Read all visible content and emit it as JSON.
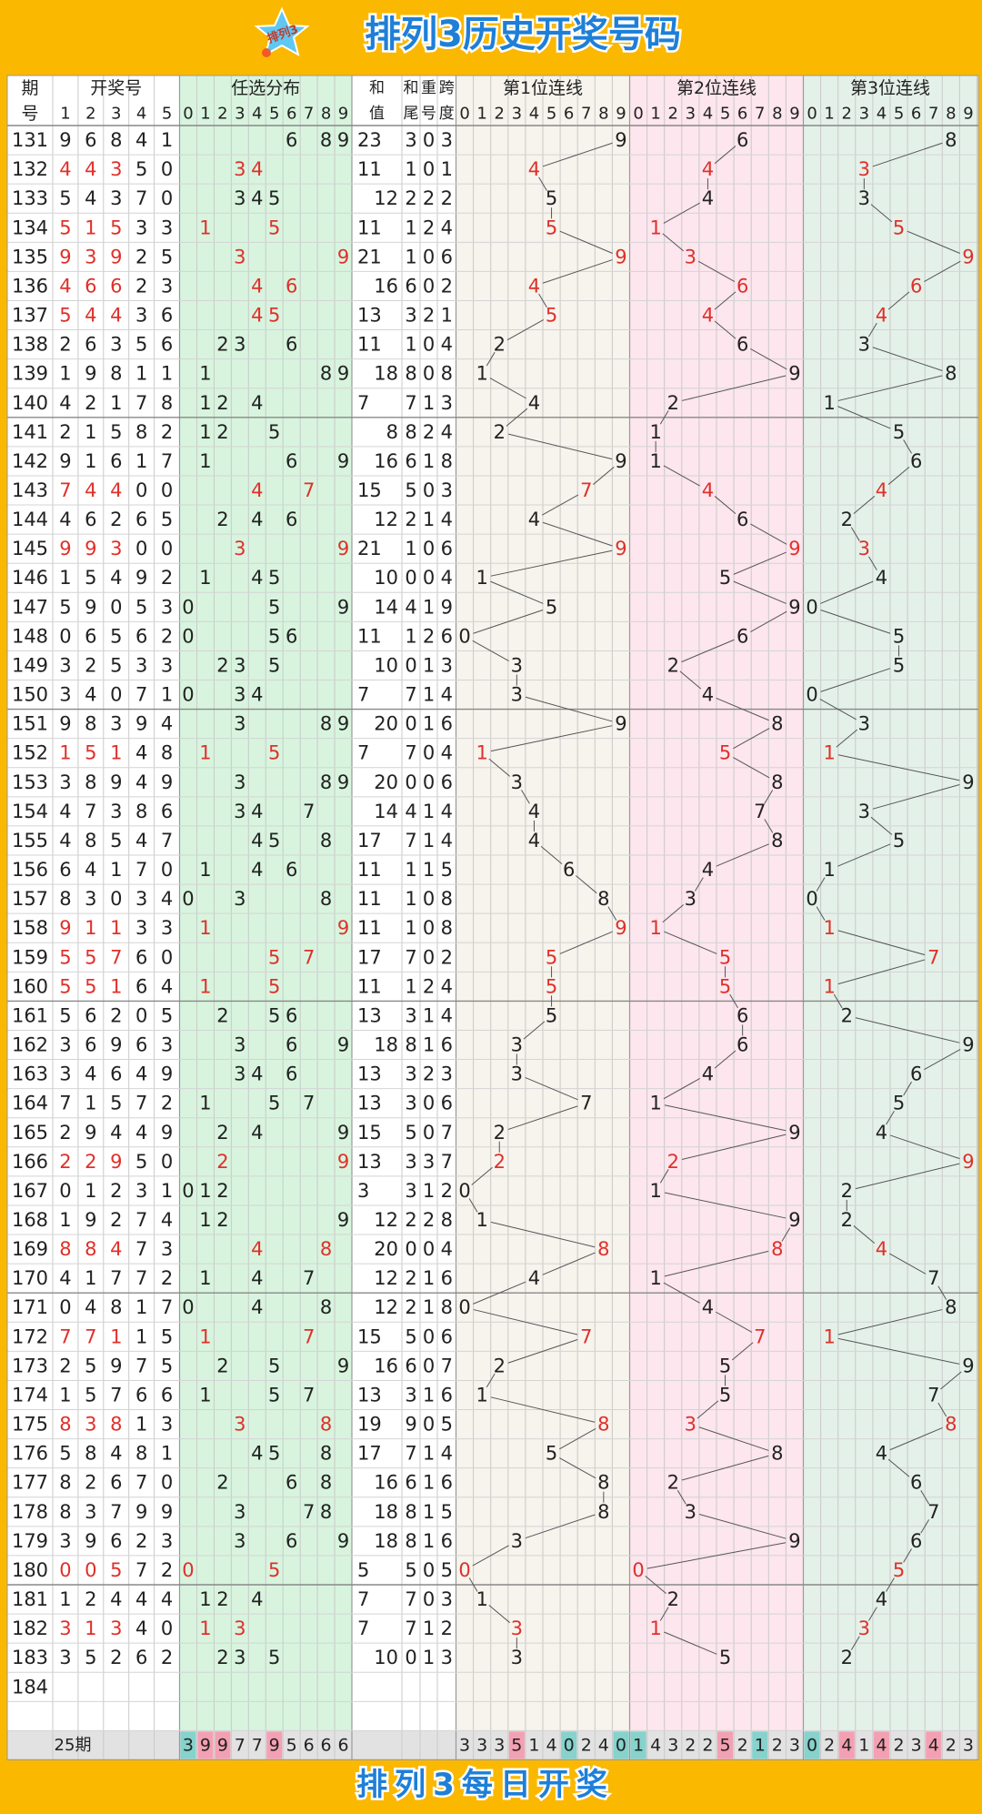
{
  "header": {
    "logo": "排列3",
    "title": "排列3历史开奖号码"
  },
  "footer": {
    "text": "排列3每日开奖"
  },
  "table": {
    "headers": {
      "period": [
        "期",
        "号"
      ],
      "numbers": "开奖号",
      "distribution": "任选分布",
      "sum": [
        "和",
        "值"
      ],
      "tail": [
        "和",
        "尾"
      ],
      "repeat": [
        "重",
        "号"
      ],
      "span": [
        "跨",
        "度"
      ],
      "positions": [
        "第1位连线",
        "第2位连线",
        "第3位连线"
      ]
    },
    "number_columns": [
      "1",
      "2",
      "3",
      "4",
      "5"
    ],
    "digits": [
      "0",
      "1",
      "2",
      "3",
      "4",
      "5",
      "6",
      "7",
      "8",
      "9"
    ],
    "rows": [
      {
        "period": "131",
        "nums": [
          9,
          6,
          8,
          4,
          1
        ],
        "sum": 23,
        "tail": 3,
        "repeat": 0,
        "span": 3
      },
      {
        "period": "132",
        "nums": [
          4,
          4,
          3,
          5,
          0
        ],
        "sum": 11,
        "tail": 1,
        "repeat": 0,
        "span": 1
      },
      {
        "period": "133",
        "nums": [
          5,
          4,
          3,
          7,
          0
        ],
        "sum": 12,
        "tail": 2,
        "repeat": 2,
        "span": 2
      },
      {
        "period": "134",
        "nums": [
          5,
          1,
          5,
          3,
          3
        ],
        "sum": 11,
        "tail": 1,
        "repeat": 2,
        "span": 4
      },
      {
        "period": "135",
        "nums": [
          9,
          3,
          9,
          2,
          5
        ],
        "sum": 21,
        "tail": 1,
        "repeat": 0,
        "span": 6
      },
      {
        "period": "136",
        "nums": [
          4,
          6,
          6,
          2,
          3
        ],
        "sum": 16,
        "tail": 6,
        "repeat": 0,
        "span": 2
      },
      {
        "period": "137",
        "nums": [
          5,
          4,
          4,
          3,
          6
        ],
        "sum": 13,
        "tail": 3,
        "repeat": 2,
        "span": 1
      },
      {
        "period": "138",
        "nums": [
          2,
          6,
          3,
          5,
          6
        ],
        "sum": 11,
        "tail": 1,
        "repeat": 0,
        "span": 4
      },
      {
        "period": "139",
        "nums": [
          1,
          9,
          8,
          1,
          1
        ],
        "sum": 18,
        "tail": 8,
        "repeat": 0,
        "span": 8
      },
      {
        "period": "140",
        "nums": [
          4,
          2,
          1,
          7,
          8
        ],
        "sum": 7,
        "tail": 7,
        "repeat": 1,
        "span": 3
      },
      {
        "period": "141",
        "nums": [
          2,
          1,
          5,
          8,
          2
        ],
        "sum": 8,
        "tail": 8,
        "repeat": 2,
        "span": 4
      },
      {
        "period": "142",
        "nums": [
          9,
          1,
          6,
          1,
          7
        ],
        "sum": 16,
        "tail": 6,
        "repeat": 1,
        "span": 8
      },
      {
        "period": "143",
        "nums": [
          7,
          4,
          4,
          0,
          0
        ],
        "sum": 15,
        "tail": 5,
        "repeat": 0,
        "span": 3
      },
      {
        "period": "144",
        "nums": [
          4,
          6,
          2,
          6,
          5
        ],
        "sum": 12,
        "tail": 2,
        "repeat": 1,
        "span": 4
      },
      {
        "period": "145",
        "nums": [
          9,
          9,
          3,
          0,
          0
        ],
        "sum": 21,
        "tail": 1,
        "repeat": 0,
        "span": 6
      },
      {
        "period": "146",
        "nums": [
          1,
          5,
          4,
          9,
          2
        ],
        "sum": 10,
        "tail": 0,
        "repeat": 0,
        "span": 4
      },
      {
        "period": "147",
        "nums": [
          5,
          9,
          0,
          5,
          3
        ],
        "sum": 14,
        "tail": 4,
        "repeat": 1,
        "span": 9
      },
      {
        "period": "148",
        "nums": [
          0,
          6,
          5,
          6,
          2
        ],
        "sum": 11,
        "tail": 1,
        "repeat": 2,
        "span": 6
      },
      {
        "period": "149",
        "nums": [
          3,
          2,
          5,
          3,
          3
        ],
        "sum": 10,
        "tail": 0,
        "repeat": 1,
        "span": 3
      },
      {
        "period": "150",
        "nums": [
          3,
          4,
          0,
          7,
          1
        ],
        "sum": 7,
        "tail": 7,
        "repeat": 1,
        "span": 4
      },
      {
        "period": "151",
        "nums": [
          9,
          8,
          3,
          9,
          4
        ],
        "sum": 20,
        "tail": 0,
        "repeat": 1,
        "span": 6
      },
      {
        "period": "152",
        "nums": [
          1,
          5,
          1,
          4,
          8
        ],
        "sum": 7,
        "tail": 7,
        "repeat": 0,
        "span": 4
      },
      {
        "period": "153",
        "nums": [
          3,
          8,
          9,
          4,
          9
        ],
        "sum": 20,
        "tail": 0,
        "repeat": 0,
        "span": 6
      },
      {
        "period": "154",
        "nums": [
          4,
          7,
          3,
          8,
          6
        ],
        "sum": 14,
        "tail": 4,
        "repeat": 1,
        "span": 4
      },
      {
        "period": "155",
        "nums": [
          4,
          8,
          5,
          4,
          7
        ],
        "sum": 17,
        "tail": 7,
        "repeat": 1,
        "span": 4
      },
      {
        "period": "156",
        "nums": [
          6,
          4,
          1,
          7,
          0
        ],
        "sum": 11,
        "tail": 1,
        "repeat": 1,
        "span": 5
      },
      {
        "period": "157",
        "nums": [
          8,
          3,
          0,
          3,
          4
        ],
        "sum": 11,
        "tail": 1,
        "repeat": 0,
        "span": 8
      },
      {
        "period": "158",
        "nums": [
          9,
          1,
          1,
          3,
          3
        ],
        "sum": 11,
        "tail": 1,
        "repeat": 0,
        "span": 8
      },
      {
        "period": "159",
        "nums": [
          5,
          5,
          7,
          6,
          0
        ],
        "sum": 17,
        "tail": 7,
        "repeat": 0,
        "span": 2
      },
      {
        "period": "160",
        "nums": [
          5,
          5,
          1,
          6,
          4
        ],
        "sum": 11,
        "tail": 1,
        "repeat": 2,
        "span": 4
      },
      {
        "period": "161",
        "nums": [
          5,
          6,
          2,
          0,
          5
        ],
        "sum": 13,
        "tail": 3,
        "repeat": 1,
        "span": 4
      },
      {
        "period": "162",
        "nums": [
          3,
          6,
          9,
          6,
          3
        ],
        "sum": 18,
        "tail": 8,
        "repeat": 1,
        "span": 6
      },
      {
        "period": "163",
        "nums": [
          3,
          4,
          6,
          4,
          9
        ],
        "sum": 13,
        "tail": 3,
        "repeat": 2,
        "span": 3
      },
      {
        "period": "164",
        "nums": [
          7,
          1,
          5,
          7,
          2
        ],
        "sum": 13,
        "tail": 3,
        "repeat": 0,
        "span": 6
      },
      {
        "period": "165",
        "nums": [
          2,
          9,
          4,
          4,
          9
        ],
        "sum": 15,
        "tail": 5,
        "repeat": 0,
        "span": 7
      },
      {
        "period": "166",
        "nums": [
          2,
          2,
          9,
          5,
          0
        ],
        "sum": 13,
        "tail": 3,
        "repeat": 3,
        "span": 7
      },
      {
        "period": "167",
        "nums": [
          0,
          1,
          2,
          3,
          1
        ],
        "sum": 3,
        "tail": 3,
        "repeat": 1,
        "span": 2
      },
      {
        "period": "168",
        "nums": [
          1,
          9,
          2,
          7,
          4
        ],
        "sum": 12,
        "tail": 2,
        "repeat": 2,
        "span": 8
      },
      {
        "period": "169",
        "nums": [
          8,
          8,
          4,
          7,
          3
        ],
        "sum": 20,
        "tail": 0,
        "repeat": 0,
        "span": 4
      },
      {
        "period": "170",
        "nums": [
          4,
          1,
          7,
          7,
          2
        ],
        "sum": 12,
        "tail": 2,
        "repeat": 1,
        "span": 6
      },
      {
        "period": "171",
        "nums": [
          0,
          4,
          8,
          1,
          7
        ],
        "sum": 12,
        "tail": 2,
        "repeat": 1,
        "span": 8
      },
      {
        "period": "172",
        "nums": [
          7,
          7,
          1,
          1,
          5
        ],
        "sum": 15,
        "tail": 5,
        "repeat": 0,
        "span": 6
      },
      {
        "period": "173",
        "nums": [
          2,
          5,
          9,
          7,
          5
        ],
        "sum": 16,
        "tail": 6,
        "repeat": 0,
        "span": 7
      },
      {
        "period": "174",
        "nums": [
          1,
          5,
          7,
          6,
          6
        ],
        "sum": 13,
        "tail": 3,
        "repeat": 1,
        "span": 6
      },
      {
        "period": "175",
        "nums": [
          8,
          3,
          8,
          1,
          3
        ],
        "sum": 19,
        "tail": 9,
        "repeat": 0,
        "span": 5
      },
      {
        "period": "176",
        "nums": [
          5,
          8,
          4,
          8,
          1
        ],
        "sum": 17,
        "tail": 7,
        "repeat": 1,
        "span": 4
      },
      {
        "period": "177",
        "nums": [
          8,
          2,
          6,
          7,
          0
        ],
        "sum": 16,
        "tail": 6,
        "repeat": 1,
        "span": 6
      },
      {
        "period": "178",
        "nums": [
          8,
          3,
          7,
          9,
          9
        ],
        "sum": 18,
        "tail": 8,
        "repeat": 1,
        "span": 5
      },
      {
        "period": "179",
        "nums": [
          3,
          9,
          6,
          2,
          3
        ],
        "sum": 18,
        "tail": 8,
        "repeat": 1,
        "span": 6
      },
      {
        "period": "180",
        "nums": [
          0,
          0,
          5,
          7,
          2
        ],
        "sum": 5,
        "tail": 5,
        "repeat": 0,
        "span": 5
      },
      {
        "period": "181",
        "nums": [
          1,
          2,
          4,
          4,
          4
        ],
        "sum": 7,
        "tail": 7,
        "repeat": 0,
        "span": 3
      },
      {
        "period": "182",
        "nums": [
          3,
          1,
          3,
          4,
          0
        ],
        "sum": 7,
        "tail": 7,
        "repeat": 1,
        "span": 2
      },
      {
        "period": "183",
        "nums": [
          3,
          5,
          2,
          6,
          2
        ],
        "sum": 10,
        "tail": 0,
        "repeat": 1,
        "span": 3
      },
      {
        "period": "184"
      }
    ],
    "summary": {
      "label": "25期",
      "distribution": [
        3,
        9,
        9,
        7,
        7,
        9,
        5,
        6,
        6,
        6
      ],
      "positions": [
        [
          3,
          3,
          3,
          5,
          1,
          4,
          0,
          2,
          4,
          0
        ],
        [
          1,
          4,
          3,
          2,
          2,
          5,
          2,
          1,
          2,
          3
        ],
        [
          0,
          2,
          4,
          1,
          4,
          2,
          3,
          4,
          2,
          3
        ]
      ]
    }
  }
}
